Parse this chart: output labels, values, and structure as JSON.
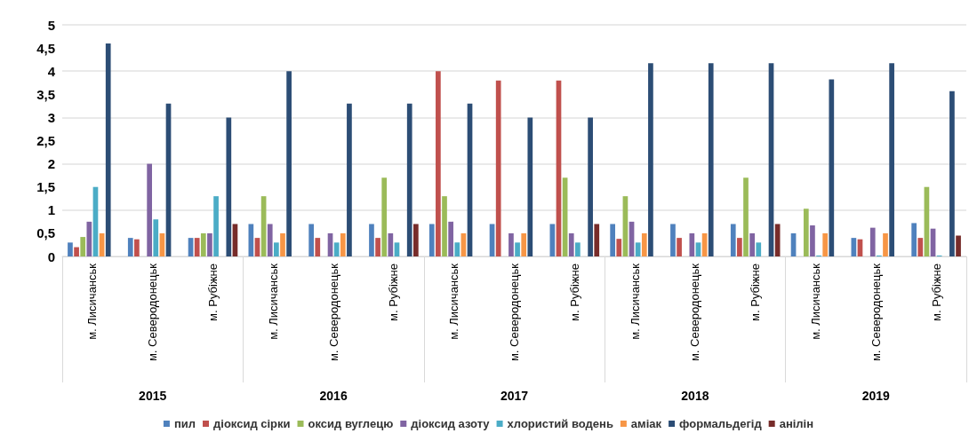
{
  "chart_data": {
    "type": "bar",
    "categories": [
      "м. Лисичанськ",
      "м. Северодонецьк",
      "м. Рубіжне",
      "м. Лисичанськ",
      "м. Северодонецьк",
      "м. Рубіжне",
      "м. Лисичанськ",
      "м. Северодонецьк",
      "м. Рубіжне",
      "м. Лисичанськ",
      "м. Северодонецьк",
      "м. Рубіжне",
      "м. Лисичанськ",
      "м. Северодонецьк",
      "м. Рубіжне"
    ],
    "annotations": [
      "2015",
      "2016",
      "2017",
      "2018",
      "2019"
    ],
    "series": [
      {
        "name": "пил",
        "color": "#4f81bd",
        "values": [
          0.3,
          0.4,
          0.4,
          0.7,
          0.7,
          0.7,
          0.7,
          0.7,
          0.7,
          0.7,
          0.7,
          0.7,
          0.5,
          0.4,
          0.72
        ]
      },
      {
        "name": "діоксид сірки",
        "color": "#c0504d",
        "values": [
          0.2,
          0.37,
          0.4,
          0.4,
          0.4,
          0.4,
          4.0,
          3.8,
          3.8,
          0.38,
          0.4,
          0.4,
          null,
          0.37,
          0.4
        ]
      },
      {
        "name": "оксид вуглецю",
        "color": "#9bbb59",
        "values": [
          0.42,
          null,
          0.5,
          1.3,
          null,
          1.7,
          1.3,
          null,
          1.7,
          1.3,
          null,
          1.7,
          1.03,
          null,
          1.5
        ]
      },
      {
        "name": "діоксид азоту",
        "color": "#8064a2",
        "values": [
          0.75,
          2.0,
          0.5,
          0.7,
          0.5,
          0.5,
          0.75,
          0.5,
          0.5,
          0.75,
          0.5,
          0.5,
          0.67,
          0.62,
          0.6
        ]
      },
      {
        "name": "хлористий водень",
        "color": "#4bacc6",
        "values": [
          1.5,
          0.8,
          1.3,
          0.3,
          0.3,
          0.3,
          0.3,
          0.3,
          0.3,
          0.3,
          0.3,
          0.3,
          0.02,
          0.02,
          0.02
        ]
      },
      {
        "name": "аміак",
        "color": "#f79646",
        "values": [
          0.5,
          0.5,
          null,
          0.5,
          0.5,
          null,
          0.5,
          0.5,
          null,
          0.5,
          0.5,
          null,
          0.5,
          0.5,
          null
        ]
      },
      {
        "name": "формальдегід",
        "color": "#2c4d75",
        "values": [
          4.6,
          3.3,
          3.0,
          4.0,
          3.3,
          3.3,
          3.3,
          3.0,
          3.0,
          4.17,
          4.17,
          4.17,
          3.82,
          4.17,
          3.57
        ]
      },
      {
        "name": "анілін",
        "color": "#772c2a",
        "values": [
          null,
          null,
          0.7,
          null,
          null,
          0.7,
          null,
          null,
          0.7,
          null,
          null,
          0.7,
          null,
          null,
          0.45
        ]
      }
    ],
    "ylim": [
      0,
      5
    ],
    "yticks": [
      0,
      {
        "value": 0.5,
        "label": "0,5"
      },
      1,
      {
        "value": 1.5,
        "label": "1,5"
      },
      2,
      {
        "value": 2.5,
        "label": "2,5"
      },
      3,
      {
        "value": 3.5,
        "label": "3,5"
      },
      4,
      {
        "value": 4.5,
        "label": "4,5"
      },
      5
    ],
    "grid": "y",
    "legend": "bottom"
  }
}
